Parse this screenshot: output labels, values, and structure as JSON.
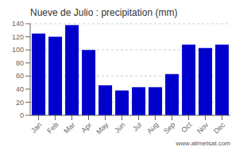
{
  "chart_data": {
    "type": "bar",
    "title": "Nueve de Julio : precipitation (mm)",
    "categories": [
      "Jan",
      "Feb",
      "Mar",
      "Apr",
      "May",
      "Jun",
      "Jul",
      "Aug",
      "Sep",
      "Oct",
      "Nov",
      "Dec"
    ],
    "values": [
      125,
      120,
      138,
      100,
      46,
      38,
      43,
      43,
      63,
      108,
      103,
      108
    ],
    "color": "#0000CC",
    "ylim": [
      0,
      140
    ],
    "yticks": [
      0,
      20,
      40,
      60,
      80,
      100,
      120,
      140
    ],
    "grid": true,
    "annotations": [
      "www.allmetsat.com"
    ]
  }
}
